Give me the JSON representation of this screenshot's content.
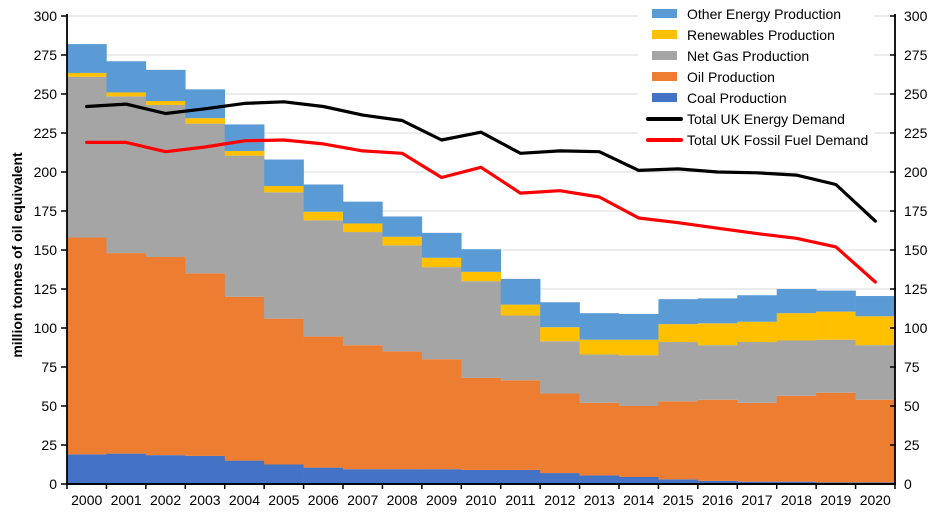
{
  "chart_data": {
    "type": "bar",
    "subtype": "stacked-bars-with-line-overlay",
    "title": "",
    "xlabel": "",
    "ylabel": "million tonnes of oil equivalent",
    "ylim": [
      0,
      300
    ],
    "ytick_step": 25,
    "grid": true,
    "legend_position": "top-right-inside",
    "categories": [
      "2000",
      "2001",
      "2002",
      "2003",
      "2004",
      "2005",
      "2006",
      "2007",
      "2008",
      "2009",
      "2010",
      "2011",
      "2012",
      "2013",
      "2014",
      "2015",
      "2016",
      "2017",
      "2018",
      "2019",
      "2020"
    ],
    "bar_series": [
      {
        "name": "Coal Production",
        "color": "#4472C4",
        "values": [
          19,
          19.5,
          18.5,
          18,
          15,
          12.5,
          10.5,
          9.5,
          9.5,
          9.5,
          9,
          9,
          7,
          5.5,
          4.5,
          3,
          2,
          1.5,
          1.5,
          1,
          1
        ]
      },
      {
        "name": "Oil Production",
        "color": "#ED7D31",
        "values": [
          139,
          128.5,
          127,
          117,
          105,
          93.5,
          84,
          79.5,
          75.5,
          70.5,
          59,
          57.5,
          51,
          46.5,
          45.5,
          50,
          52,
          50.5,
          55,
          57.5,
          53
        ]
      },
      {
        "name": "Net Gas Production",
        "color": "#A5A5A5",
        "values": [
          103,
          100.5,
          97.5,
          96,
          90.5,
          81,
          74.5,
          72.5,
          68,
          59,
          62,
          41.5,
          33.5,
          31,
          32.5,
          38,
          35,
          39,
          35.5,
          34,
          35
        ]
      },
      {
        "name": "Renewables Production",
        "color": "#FFC000",
        "values": [
          2.5,
          2.5,
          2.5,
          3.5,
          3,
          4,
          5.5,
          5.5,
          5.5,
          6,
          6,
          7,
          9,
          9.5,
          10,
          11.5,
          14,
          13,
          17.5,
          18,
          18.5
        ]
      },
      {
        "name": "Other Energy Production",
        "color": "#5B9BD5",
        "values": [
          18.5,
          20,
          20,
          18.5,
          17,
          17,
          17.5,
          14,
          13,
          16,
          14.5,
          16.5,
          16,
          17,
          16.5,
          16,
          16,
          17,
          15.5,
          13.5,
          13
        ]
      }
    ],
    "line_series": [
      {
        "name": "Total UK Energy Demand",
        "color": "#000000",
        "values": [
          242,
          243.5,
          237.5,
          240.5,
          244,
          245,
          242,
          236.5,
          233,
          220.5,
          225.5,
          212,
          213.5,
          213,
          201,
          202,
          200,
          199.5,
          198,
          192,
          168.5
        ]
      },
      {
        "name": "Total UK Fossil Fuel Demand",
        "color": "#FF0000",
        "values": [
          219,
          219,
          213,
          216,
          220,
          220.5,
          218,
          213.5,
          212,
          196.5,
          203,
          186.5,
          188,
          184,
          170.5,
          167.5,
          164,
          160.5,
          157.5,
          152,
          129.5
        ]
      }
    ],
    "colors": {
      "gridline": "#D9D9D9",
      "axis": "#000000",
      "text": "#000000",
      "background": "#FFFFFF"
    }
  }
}
